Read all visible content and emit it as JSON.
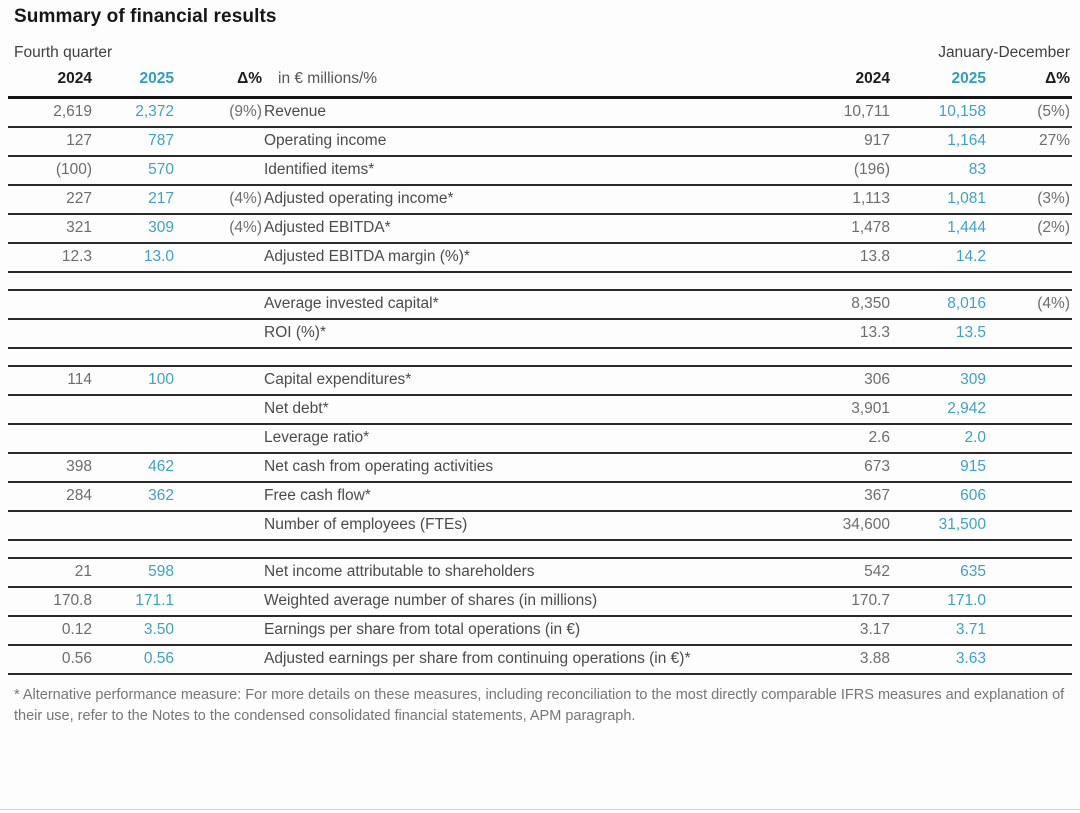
{
  "page": {
    "title": "Summary of financial results",
    "footnote": "* Alternative performance measure: For more details on these measures, including reconciliation to the most directly comparable IFRS measures and explanation of their use, refer to the Notes to the condensed consolidated financial statements, APM paragraph."
  },
  "colors": {
    "accent_2025": "#2f9fc0",
    "value_2025": "#3da3c2",
    "value_2024": "#6d6d6d",
    "label_text": "#4b4b4b",
    "header_text": "#1c1c1c",
    "rule_dark": "#2a2a2a",
    "footnote_text": "#767676"
  },
  "table": {
    "left_period": "Fourth quarter",
    "right_period": "January-December",
    "headers": {
      "q4_2024": "2024",
      "q4_2025": "2025",
      "q4_delta": "Δ%",
      "unit": "in € millions/%",
      "fy_2024": "2024",
      "fy_2025": "2025",
      "fy_delta": "Δ%"
    },
    "rows": [
      {
        "q4_2024": "2,619",
        "q4_2025": "2,372",
        "q4_delta": "(9%)",
        "label": "Revenue",
        "fy_2024": "10,711",
        "fy_2025": "10,158",
        "fy_delta": "(5%)"
      },
      {
        "q4_2024": "127",
        "q4_2025": "787",
        "q4_delta": "",
        "label": "Operating income",
        "fy_2024": "917",
        "fy_2025": "1,164",
        "fy_delta": "27%"
      },
      {
        "q4_2024": "(100)",
        "q4_2025": "570",
        "q4_delta": "",
        "label": "Identified items*",
        "fy_2024": "(196)",
        "fy_2025": "83",
        "fy_delta": ""
      },
      {
        "q4_2024": "227",
        "q4_2025": "217",
        "q4_delta": "(4%)",
        "label": "Adjusted operating income*",
        "fy_2024": "1,113",
        "fy_2025": "1,081",
        "fy_delta": "(3%)"
      },
      {
        "q4_2024": "321",
        "q4_2025": "309",
        "q4_delta": "(4%)",
        "label": "Adjusted EBITDA*",
        "fy_2024": "1,478",
        "fy_2025": "1,444",
        "fy_delta": "(2%)"
      },
      {
        "q4_2024": "12.3",
        "q4_2025": "13.0",
        "q4_delta": "",
        "label": "Adjusted EBITDA margin (%)*",
        "fy_2024": "13.8",
        "fy_2025": "14.2",
        "fy_delta": ""
      },
      {
        "type": "spacer"
      },
      {
        "q4_2024": "",
        "q4_2025": "",
        "q4_delta": "",
        "label": "Average invested capital*",
        "fy_2024": "8,350",
        "fy_2025": "8,016",
        "fy_delta": "(4%)"
      },
      {
        "q4_2024": "",
        "q4_2025": "",
        "q4_delta": "",
        "label": "ROI (%)*",
        "fy_2024": "13.3",
        "fy_2025": "13.5",
        "fy_delta": ""
      },
      {
        "type": "spacer"
      },
      {
        "q4_2024": "114",
        "q4_2025": "100",
        "q4_delta": "",
        "label": "Capital expenditures*",
        "fy_2024": "306",
        "fy_2025": "309",
        "fy_delta": ""
      },
      {
        "q4_2024": "",
        "q4_2025": "",
        "q4_delta": "",
        "label": "Net debt*",
        "fy_2024": "3,901",
        "fy_2025": "2,942",
        "fy_delta": ""
      },
      {
        "q4_2024": "",
        "q4_2025": "",
        "q4_delta": "",
        "label": "Leverage ratio*",
        "fy_2024": "2.6",
        "fy_2025": "2.0",
        "fy_delta": ""
      },
      {
        "q4_2024": "398",
        "q4_2025": "462",
        "q4_delta": "",
        "label": "Net cash from operating activities",
        "fy_2024": "673",
        "fy_2025": "915",
        "fy_delta": ""
      },
      {
        "q4_2024": "284",
        "q4_2025": "362",
        "q4_delta": "",
        "label": "Free cash flow*",
        "fy_2024": "367",
        "fy_2025": "606",
        "fy_delta": ""
      },
      {
        "q4_2024": "",
        "q4_2025": "",
        "q4_delta": "",
        "label": "Number of employees (FTEs)",
        "fy_2024": "34,600",
        "fy_2025": "31,500",
        "fy_delta": ""
      },
      {
        "type": "spacer"
      },
      {
        "q4_2024": "21",
        "q4_2025": "598",
        "q4_delta": "",
        "label": "Net income attributable to shareholders",
        "fy_2024": "542",
        "fy_2025": "635",
        "fy_delta": ""
      },
      {
        "q4_2024": "170.8",
        "q4_2025": "171.1",
        "q4_delta": "",
        "label": "Weighted average number of shares (in millions)",
        "fy_2024": "170.7",
        "fy_2025": "171.0",
        "fy_delta": ""
      },
      {
        "q4_2024": "0.12",
        "q4_2025": "3.50",
        "q4_delta": "",
        "label": "Earnings per share from total operations (in €)",
        "fy_2024": "3.17",
        "fy_2025": "3.71",
        "fy_delta": ""
      },
      {
        "q4_2024": "0.56",
        "q4_2025": "0.56",
        "q4_delta": "",
        "label": "Adjusted earnings per share from continuing operations (in €)*",
        "fy_2024": "3.88",
        "fy_2025": "3.63",
        "fy_delta": ""
      }
    ]
  }
}
